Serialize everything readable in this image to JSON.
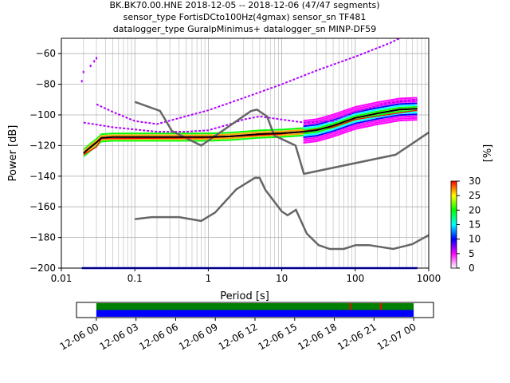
{
  "title": {
    "line1": "BK.BK70.00.HNE   2018-12-05 -- 2018-12-06  (47/47 segments)",
    "line2": "sensor_type FortisDCto100Hz(4gmax) sensor_sn TF481",
    "line3": "datalogger_type GuralpMinimus+ datalogger_sn MINP-DF59"
  },
  "chart_data": [
    {
      "type": "heatmap",
      "subtype": "probabilistic-power-spectral-density",
      "xlabel": "Period [s]",
      "ylabel": "Power [dB]",
      "xscale": "log",
      "xlim": [
        0.01,
        1000
      ],
      "ylim": [
        -200,
        -50
      ],
      "xticks": [
        {
          "value": 0.01,
          "label": "0.01"
        },
        {
          "value": 0.1,
          "label": "0.1"
        },
        {
          "value": 1,
          "label": "1"
        },
        {
          "value": 10,
          "label": "10"
        },
        {
          "value": 100,
          "label": "100"
        },
        {
          "value": 1000,
          "label": "1000"
        }
      ],
      "yticks": [
        -200,
        -180,
        -160,
        -140,
        -120,
        -100,
        -80,
        -60
      ],
      "grid": true,
      "colorbar": {
        "label": "[%]",
        "range": [
          0,
          30
        ],
        "ticks": [
          0,
          5,
          10,
          15,
          20,
          25,
          30
        ],
        "colors": [
          "#ffffff",
          "#ff00ff",
          "#0000ff",
          "#00ffff",
          "#00ff00",
          "#ffff00",
          "#ff0000"
        ]
      },
      "series": [
        {
          "name": "",
          "role": "NHNM",
          "color": "#666666",
          "points": [
            [
              0.1,
              -91.5
            ],
            [
              0.22,
              -97.4
            ],
            [
              0.32,
              -110.5
            ],
            [
              0.8,
              -120
            ],
            [
              3.8,
              -97.5
            ],
            [
              4.6,
              -96.5
            ],
            [
              6.3,
              -101
            ],
            [
              7.9,
              -113.5
            ],
            [
              15.4,
              -120
            ],
            [
              20,
              -138.5
            ],
            [
              354.8,
              -126
            ],
            [
              1000,
              -111.5
            ]
          ]
        },
        {
          "name": "",
          "role": "NLNM",
          "color": "#666666",
          "points": [
            [
              0.1,
              -168
            ],
            [
              0.17,
              -166.7
            ],
            [
              0.4,
              -166.7
            ],
            [
              0.8,
              -169.2
            ],
            [
              1.24,
              -163.7
            ],
            [
              2.4,
              -148.6
            ],
            [
              4.3,
              -141.1
            ],
            [
              5,
              -141.1
            ],
            [
              6,
              -149
            ],
            [
              10,
              -163
            ],
            [
              12,
              -165.5
            ],
            [
              15.6,
              -162
            ],
            [
              21.9,
              -177.5
            ],
            [
              31.6,
              -185
            ],
            [
              45,
              -187.5
            ],
            [
              70,
              -187.5
            ],
            [
              101,
              -185
            ],
            [
              154,
              -185
            ],
            [
              328,
              -187.5
            ],
            [
              600,
              -184.4
            ],
            [
              1000,
              -178.5
            ]
          ]
        },
        {
          "name": "",
          "role": "mean",
          "color": "#000000",
          "points": [
            [
              0.02,
              -125
            ],
            [
              0.025,
              -121
            ],
            [
              0.03,
              -118
            ],
            [
              0.035,
              -115
            ],
            [
              0.05,
              -114.5
            ],
            [
              0.1,
              -114.5
            ],
            [
              0.5,
              -114.5
            ],
            [
              1,
              -114.5
            ],
            [
              2,
              -114
            ],
            [
              5,
              -112.5
            ],
            [
              10,
              -112
            ],
            [
              20,
              -111
            ],
            [
              30,
              -110
            ],
            [
              50,
              -107
            ],
            [
              100,
              -102
            ],
            [
              200,
              -99
            ],
            [
              400,
              -96.5
            ],
            [
              700,
              -96
            ]
          ]
        },
        {
          "name": "",
          "role": "mode",
          "color": "#ff0000",
          "points": [
            [
              0.02,
              -126
            ],
            [
              0.03,
              -121
            ],
            [
              0.035,
              -115.5
            ],
            [
              1,
              -115
            ],
            [
              10,
              -112.5
            ],
            [
              50,
              -108
            ],
            [
              100,
              -103
            ],
            [
              700,
              -97
            ]
          ]
        },
        {
          "name": "",
          "role": "upper-tail",
          "color": "#b000ff",
          "points": [
            [
              0.03,
              -93
            ],
            [
              0.05,
              -98
            ],
            [
              0.1,
              -104
            ],
            [
              0.2,
              -106
            ],
            [
              1,
              -97
            ],
            [
              3,
              -89
            ],
            [
              10,
              -80
            ],
            [
              30,
              -71
            ],
            [
              100,
              -62
            ],
            [
              300,
              -53
            ],
            [
              400,
              -50
            ]
          ]
        },
        {
          "name": "",
          "role": "lower-tail",
          "color": "#b000ff",
          "points": [
            [
              0.02,
              -105
            ],
            [
              0.05,
              -108
            ],
            [
              0.2,
              -111
            ],
            [
              0.5,
              -111
            ],
            [
              1,
              -110
            ],
            [
              2,
              -106
            ],
            [
              3,
              -103
            ],
            [
              5,
              -101
            ],
            [
              10,
              -103
            ],
            [
              20,
              -105
            ],
            [
              50,
              -104
            ],
            [
              100,
              -98
            ],
            [
              300,
              -92
            ],
            [
              700,
              -90
            ]
          ]
        }
      ],
      "outliers": [
        [
          0.019,
          -78
        ],
        [
          0.02,
          -72
        ],
        [
          0.025,
          -68
        ],
        [
          0.028,
          -65
        ],
        [
          0.03,
          -63
        ]
      ]
    },
    {
      "type": "bar",
      "subtype": "data-coverage",
      "xticks": [
        "12-06 00",
        "12-06 03",
        "12-06 06",
        "12-06 09",
        "12-06 12",
        "12-06 15",
        "12-06 18",
        "12-06 21",
        "12-07 00"
      ],
      "x_range_hours": [
        -1.5,
        25.5
      ],
      "coverage_hours": [
        0,
        24
      ],
      "gap_marks_hours": [
        19.2,
        21.5
      ],
      "colors": {
        "used": "#008000",
        "available": "#0000ff",
        "gap": "#ff0000"
      }
    }
  ]
}
